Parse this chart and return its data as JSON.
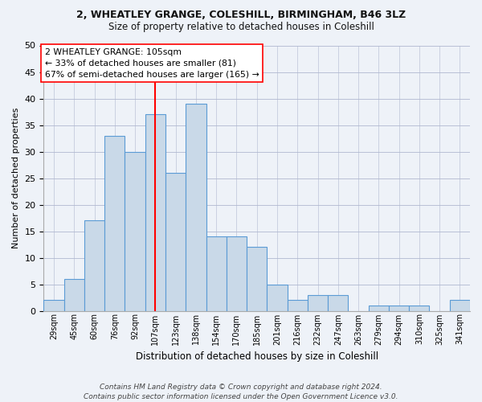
{
  "title1": "2, WHEATLEY GRANGE, COLESHILL, BIRMINGHAM, B46 3LZ",
  "title2": "Size of property relative to detached houses in Coleshill",
  "xlabel": "Distribution of detached houses by size in Coleshill",
  "ylabel": "Number of detached properties",
  "bin_labels": [
    "29sqm",
    "45sqm",
    "60sqm",
    "76sqm",
    "92sqm",
    "107sqm",
    "123sqm",
    "138sqm",
    "154sqm",
    "170sqm",
    "185sqm",
    "201sqm",
    "216sqm",
    "232sqm",
    "247sqm",
    "263sqm",
    "279sqm",
    "294sqm",
    "310sqm",
    "325sqm",
    "341sqm"
  ],
  "bin_values": [
    2,
    6,
    17,
    33,
    30,
    37,
    26,
    39,
    14,
    14,
    12,
    5,
    2,
    3,
    3,
    0,
    1,
    1,
    1,
    0,
    2
  ],
  "bar_color": "#c9d9e8",
  "bar_edge_color": "#5b9bd5",
  "vline_x_index": 5,
  "vline_color": "red",
  "annotation_text": "2 WHEATLEY GRANGE: 105sqm\n← 33% of detached houses are smaller (81)\n67% of semi-detached houses are larger (165) →",
  "annotation_box_color": "white",
  "annotation_box_edge": "red",
  "ylim": [
    0,
    50
  ],
  "yticks": [
    0,
    5,
    10,
    15,
    20,
    25,
    30,
    35,
    40,
    45,
    50
  ],
  "footer": "Contains HM Land Registry data © Crown copyright and database right 2024.\nContains public sector information licensed under the Open Government Licence v3.0.",
  "bg_color": "#eef2f8",
  "grid_color": "#b0b8d0"
}
